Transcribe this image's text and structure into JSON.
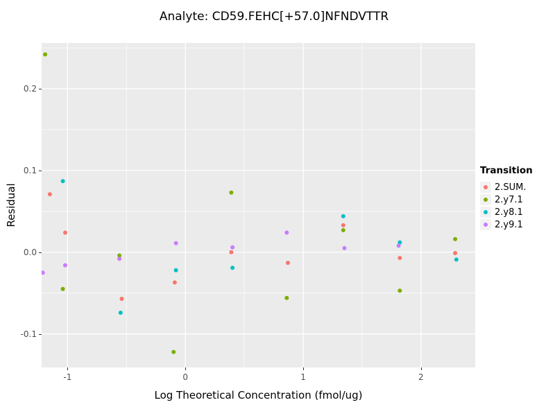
{
  "chart": {
    "title": "Analyte: CD59.FEHC[+57.0]NFNDVTTR",
    "xlabel": "Log Theoretical Concentration (fmol/ug)",
    "ylabel": "Residual"
  },
  "legend": {
    "title": "Transition"
  },
  "chart_data": {
    "type": "scatter",
    "title": "Analyte: CD59.FEHC[+57.0]NFNDVTTR",
    "xlabel": "Log Theoretical Concentration (fmol/ug)",
    "ylabel": "Residual",
    "xlim": [
      -1.22,
      2.46
    ],
    "ylim": [
      -0.141,
      0.256
    ],
    "x_major_ticks": [
      -1,
      0,
      1,
      2
    ],
    "x_tick_labels": [
      "-1",
      "0",
      "1",
      "2"
    ],
    "x_minor_ticks": [
      -0.5,
      0.5,
      1.5
    ],
    "y_major_ticks": [
      -0.1,
      0,
      0.1,
      0.2
    ],
    "y_tick_labels": [
      "-0.1",
      "0.0",
      "0.1",
      "0.2"
    ],
    "y_minor_ticks": [
      -0.05,
      0.05,
      0.15,
      0.25
    ],
    "panel_bg": "#EBEBEB",
    "grid_color": "#FFFFFF",
    "grid": true,
    "legend_title": "Transition",
    "legend_position": "right",
    "point_radius": 3,
    "series": [
      {
        "name": "2.SUM.",
        "color": "#F8766D",
        "points": [
          [
            -1.15,
            0.071
          ],
          [
            -1.02,
            0.024
          ],
          [
            -0.54,
            -0.057
          ],
          [
            -0.09,
            -0.037
          ],
          [
            0.39,
            0.0
          ],
          [
            0.87,
            -0.013
          ],
          [
            1.34,
            0.033
          ],
          [
            1.82,
            -0.007
          ],
          [
            2.29,
            -0.001
          ]
        ]
      },
      {
        "name": "2.y7.1",
        "color": "#7CAE00",
        "points": [
          [
            -1.19,
            0.242
          ],
          [
            -1.04,
            -0.045
          ],
          [
            -0.56,
            -0.004
          ],
          [
            -0.1,
            -0.122
          ],
          [
            0.39,
            0.073
          ],
          [
            0.86,
            -0.056
          ],
          [
            1.34,
            0.027
          ],
          [
            1.82,
            -0.047
          ],
          [
            2.29,
            0.016
          ]
        ]
      },
      {
        "name": "2.y8.1",
        "color": "#00BFC4",
        "points": [
          [
            -1.04,
            0.087
          ],
          [
            -0.55,
            -0.074
          ],
          [
            -0.08,
            -0.022
          ],
          [
            0.4,
            -0.019
          ],
          [
            1.34,
            0.044
          ],
          [
            1.82,
            0.012
          ],
          [
            2.3,
            -0.009
          ]
        ]
      },
      {
        "name": "2.y9.1",
        "color": "#C77CFF",
        "points": [
          [
            -1.21,
            -0.025
          ],
          [
            -1.02,
            -0.016
          ],
          [
            -0.56,
            -0.008
          ],
          [
            -0.08,
            0.011
          ],
          [
            0.4,
            0.006
          ],
          [
            0.86,
            0.024
          ],
          [
            1.35,
            0.005
          ],
          [
            1.81,
            0.008
          ]
        ]
      }
    ]
  }
}
